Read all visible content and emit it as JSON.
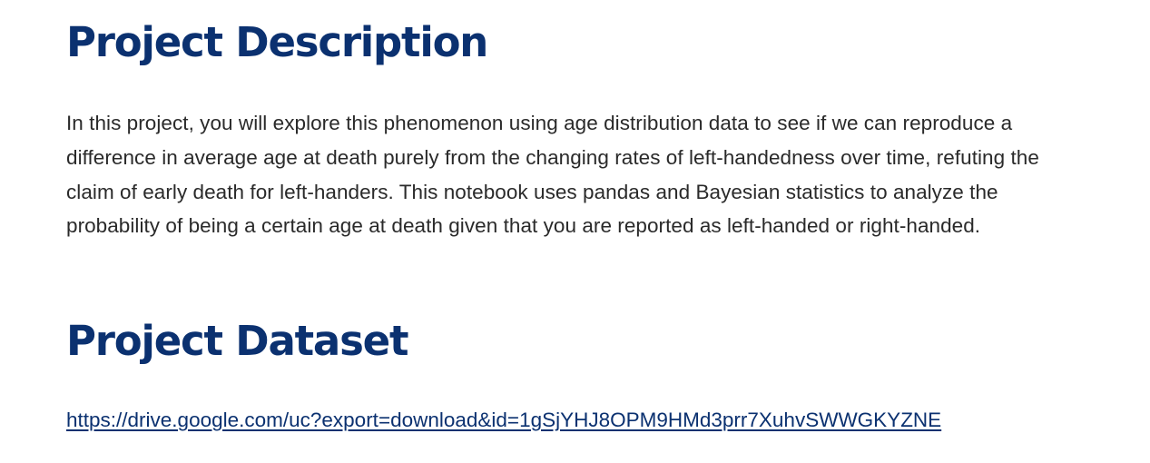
{
  "sections": {
    "description": {
      "heading": "Project Description",
      "body": "In this project, you will explore this phenomenon using age distribution data to see if we can reproduce a difference in average age at death purely from the changing rates of left-handedness over time, refuting the claim of early death for left-handers. This notebook uses pandas and Bayesian statistics to analyze the probability of being a certain age at death given that you are reported as left-handed or right-handed."
    },
    "dataset": {
      "heading": "Project Dataset",
      "link_text": "https://drive.google.com/uc?export=download&id=1gSjYHJ8OPM9HMd3prr7XuhvSWWGKYZNE"
    }
  },
  "colors": {
    "heading": "#0b3170",
    "body_text": "#2a2a2a",
    "link": "#0b3170"
  }
}
